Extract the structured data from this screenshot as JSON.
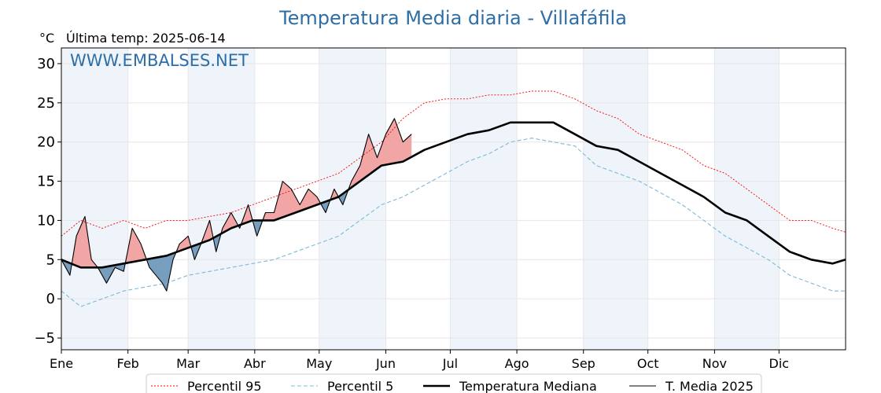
{
  "title": "Temperatura Media diaria - Villafáfila",
  "unit_label": "°C",
  "last_temp_label": "Última temp: 2025-06-14",
  "watermark": "WWW.EMBALSES.NET",
  "colors": {
    "p95": "#ff0000",
    "p5": "#7fb8d8",
    "median": "#000000",
    "current": "#000000",
    "above_fill": "#f0a0a0",
    "below_fill": "#7099bb",
    "band": "#eef4fa"
  },
  "chart_data": {
    "type": "line",
    "xlabel": "",
    "ylabel": "°C",
    "ylim": [
      -6.5,
      32
    ],
    "yticks": [
      -5,
      0,
      5,
      10,
      15,
      20,
      25,
      30
    ],
    "ytick_labels": [
      "−5",
      "0",
      "5",
      "10",
      "15",
      "20",
      "25",
      "30"
    ],
    "xlim": [
      1,
      366
    ],
    "months": [
      {
        "label": "Ene",
        "start_day": 1
      },
      {
        "label": "Feb",
        "start_day": 32
      },
      {
        "label": "Mar",
        "start_day": 60
      },
      {
        "label": "Abr",
        "start_day": 91
      },
      {
        "label": "May",
        "start_day": 121
      },
      {
        "label": "Jun",
        "start_day": 152
      },
      {
        "label": "Jul",
        "start_day": 182
      },
      {
        "label": "Ago",
        "start_day": 213
      },
      {
        "label": "Sep",
        "start_day": 244
      },
      {
        "label": "Oct",
        "start_day": 274
      },
      {
        "label": "Nov",
        "start_day": 305
      },
      {
        "label": "Dic",
        "start_day": 335
      }
    ],
    "grid": true,
    "legend_position": "bottom-center",
    "series": [
      {
        "name": "Percentil 95",
        "style": "dotted-red",
        "points": [
          [
            1,
            8
          ],
          [
            10,
            10
          ],
          [
            20,
            9
          ],
          [
            30,
            10
          ],
          [
            40,
            9
          ],
          [
            50,
            10
          ],
          [
            60,
            10
          ],
          [
            70,
            10.5
          ],
          [
            80,
            11
          ],
          [
            90,
            12
          ],
          [
            100,
            13
          ],
          [
            110,
            14
          ],
          [
            120,
            15
          ],
          [
            130,
            16
          ],
          [
            140,
            18
          ],
          [
            150,
            20
          ],
          [
            160,
            23
          ],
          [
            170,
            25
          ],
          [
            180,
            25.5
          ],
          [
            190,
            25.5
          ],
          [
            200,
            26
          ],
          [
            210,
            26
          ],
          [
            220,
            26.5
          ],
          [
            230,
            26.5
          ],
          [
            240,
            25.5
          ],
          [
            250,
            24
          ],
          [
            260,
            23
          ],
          [
            270,
            21
          ],
          [
            280,
            20
          ],
          [
            290,
            19
          ],
          [
            300,
            17
          ],
          [
            310,
            16
          ],
          [
            320,
            14
          ],
          [
            330,
            12
          ],
          [
            340,
            10
          ],
          [
            350,
            10
          ],
          [
            360,
            9
          ],
          [
            366,
            8.5
          ]
        ]
      },
      {
        "name": "Percentil 5",
        "style": "dashed-lightblue",
        "points": [
          [
            1,
            1
          ],
          [
            10,
            -1
          ],
          [
            20,
            0
          ],
          [
            30,
            1
          ],
          [
            40,
            1.5
          ],
          [
            50,
            2
          ],
          [
            60,
            3
          ],
          [
            70,
            3.5
          ],
          [
            80,
            4
          ],
          [
            90,
            4.5
          ],
          [
            100,
            5
          ],
          [
            110,
            6
          ],
          [
            120,
            7
          ],
          [
            130,
            8
          ],
          [
            140,
            10
          ],
          [
            150,
            12
          ],
          [
            160,
            13
          ],
          [
            170,
            14.5
          ],
          [
            180,
            16
          ],
          [
            190,
            17.5
          ],
          [
            200,
            18.5
          ],
          [
            210,
            20
          ],
          [
            220,
            20.5
          ],
          [
            230,
            20
          ],
          [
            240,
            19.5
          ],
          [
            250,
            17
          ],
          [
            260,
            16
          ],
          [
            270,
            15
          ],
          [
            280,
            13.5
          ],
          [
            290,
            12
          ],
          [
            300,
            10
          ],
          [
            310,
            8
          ],
          [
            320,
            6.5
          ],
          [
            330,
            5
          ],
          [
            340,
            3
          ],
          [
            350,
            2
          ],
          [
            360,
            1
          ],
          [
            366,
            1
          ]
        ]
      },
      {
        "name": "Temperatura Mediana",
        "style": "thick-black",
        "points": [
          [
            1,
            5
          ],
          [
            10,
            4
          ],
          [
            20,
            4
          ],
          [
            30,
            4.5
          ],
          [
            40,
            5
          ],
          [
            50,
            5.5
          ],
          [
            60,
            6.5
          ],
          [
            70,
            7.5
          ],
          [
            80,
            9
          ],
          [
            90,
            10
          ],
          [
            100,
            10
          ],
          [
            110,
            11
          ],
          [
            120,
            12
          ],
          [
            130,
            13
          ],
          [
            140,
            15
          ],
          [
            150,
            17
          ],
          [
            160,
            17.5
          ],
          [
            170,
            19
          ],
          [
            180,
            20
          ],
          [
            190,
            21
          ],
          [
            200,
            21.5
          ],
          [
            210,
            22.5
          ],
          [
            220,
            22.5
          ],
          [
            230,
            22.5
          ],
          [
            240,
            21
          ],
          [
            250,
            19.5
          ],
          [
            260,
            19
          ],
          [
            270,
            17.5
          ],
          [
            280,
            16
          ],
          [
            290,
            14.5
          ],
          [
            300,
            13
          ],
          [
            310,
            11
          ],
          [
            320,
            10
          ],
          [
            330,
            8
          ],
          [
            340,
            6
          ],
          [
            350,
            5
          ],
          [
            360,
            4.5
          ],
          [
            366,
            5
          ]
        ]
      },
      {
        "name": "T. Media 2025",
        "style": "thin-black",
        "points": [
          [
            1,
            5
          ],
          [
            5,
            3
          ],
          [
            8,
            8
          ],
          [
            12,
            10.5
          ],
          [
            15,
            5
          ],
          [
            18,
            4
          ],
          [
            22,
            2
          ],
          [
            26,
            4
          ],
          [
            30,
            3.5
          ],
          [
            34,
            9
          ],
          [
            38,
            7
          ],
          [
            42,
            4
          ],
          [
            45,
            3
          ],
          [
            48,
            2
          ],
          [
            50,
            1
          ],
          [
            53,
            5
          ],
          [
            56,
            7
          ],
          [
            60,
            8
          ],
          [
            63,
            5
          ],
          [
            66,
            7
          ],
          [
            70,
            10
          ],
          [
            73,
            6
          ],
          [
            76,
            9
          ],
          [
            80,
            11
          ],
          [
            84,
            9
          ],
          [
            88,
            12
          ],
          [
            92,
            8
          ],
          [
            96,
            11
          ],
          [
            100,
            11
          ],
          [
            104,
            15
          ],
          [
            108,
            14
          ],
          [
            112,
            12
          ],
          [
            116,
            14
          ],
          [
            120,
            13
          ],
          [
            124,
            11
          ],
          [
            128,
            14
          ],
          [
            132,
            12
          ],
          [
            136,
            15
          ],
          [
            140,
            17
          ],
          [
            144,
            21
          ],
          [
            148,
            18
          ],
          [
            152,
            21
          ],
          [
            156,
            23
          ],
          [
            160,
            20
          ],
          [
            164,
            21
          ]
        ]
      }
    ]
  },
  "legend": [
    {
      "label": "Percentil 95",
      "style": "dotted-red"
    },
    {
      "label": "Percentil 5",
      "style": "dashed-lightblue"
    },
    {
      "label": "Temperatura Mediana",
      "style": "thick-black"
    },
    {
      "label": "T. Media 2025",
      "style": "thin-black"
    }
  ]
}
